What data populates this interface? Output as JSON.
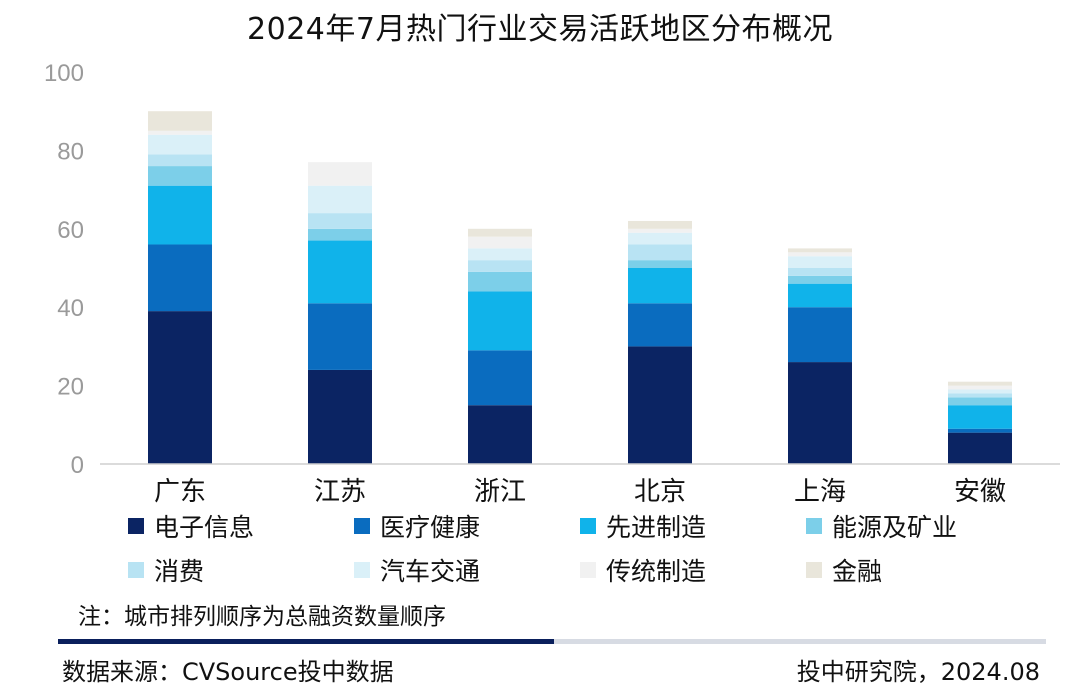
{
  "chart_data": {
    "type": "bar",
    "stacked": true,
    "title": "2024年7月热门行业交易活跃地区分布概况",
    "categories": [
      "广东",
      "江苏",
      "浙江",
      "北京",
      "上海",
      "安徽"
    ],
    "ylim": [
      0,
      100
    ],
    "yticks": [
      "0",
      "20",
      "40",
      "60",
      "80",
      "100"
    ],
    "ytick_values": [
      0,
      20,
      40,
      60,
      80,
      100
    ],
    "grid": false,
    "legend_position": "bottom",
    "series": [
      {
        "name": "电子信息",
        "color": "#0b2463",
        "values": [
          39,
          24,
          15,
          30,
          26,
          8
        ]
      },
      {
        "name": "医疗健康",
        "color": "#0a6cbf",
        "values": [
          17,
          17,
          14,
          11,
          14,
          1
        ]
      },
      {
        "name": "先进制造",
        "color": "#10b3ea",
        "values": [
          15,
          16,
          15,
          9,
          6,
          6
        ]
      },
      {
        "name": "能源及矿业",
        "color": "#7ccfe9",
        "values": [
          5,
          3,
          5,
          2,
          2,
          2
        ]
      },
      {
        "name": "消费",
        "color": "#b8e3f3",
        "values": [
          3,
          4,
          3,
          4,
          2,
          1
        ]
      },
      {
        "name": "汽车交通",
        "color": "#daf0f8",
        "values": [
          5,
          7,
          3,
          3,
          3,
          1
        ]
      },
      {
        "name": "传统制造",
        "color": "#f1f1f1",
        "values": [
          1,
          6,
          3,
          1,
          1,
          1
        ]
      },
      {
        "name": "金融",
        "color": "#e9e6db",
        "values": [
          5,
          0,
          2,
          2,
          1,
          1
        ]
      }
    ]
  },
  "note": "注：城市排列顺序为总融资数量顺序",
  "source": "数据来源：CVSource投中数据",
  "credit": "投中研究院，2024.08"
}
